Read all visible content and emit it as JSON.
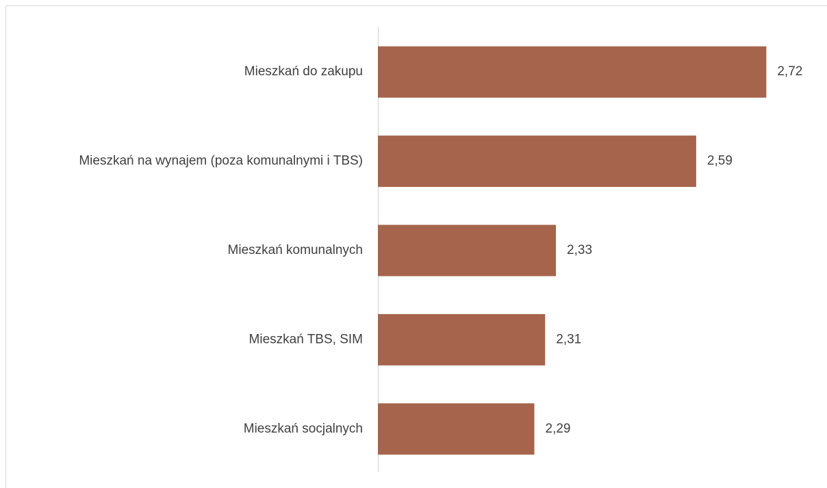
{
  "chart_data": {
    "type": "hbar",
    "categories": [
      "Mieszkań do zakupu",
      "Mieszkań na wynajem (poza komunalnymi i TBS)",
      "Mieszkań komunalnych",
      "Mieszkań TBS, SIM",
      "Mieszkań socjalnych"
    ],
    "values": [
      2.72,
      2.59,
      2.33,
      2.31,
      2.29
    ],
    "value_labels": [
      "2,72",
      "2,59",
      "2,33",
      "2,31",
      "2,29"
    ],
    "color": "#a5644b",
    "xlim": [
      2,
      2.75
    ]
  }
}
